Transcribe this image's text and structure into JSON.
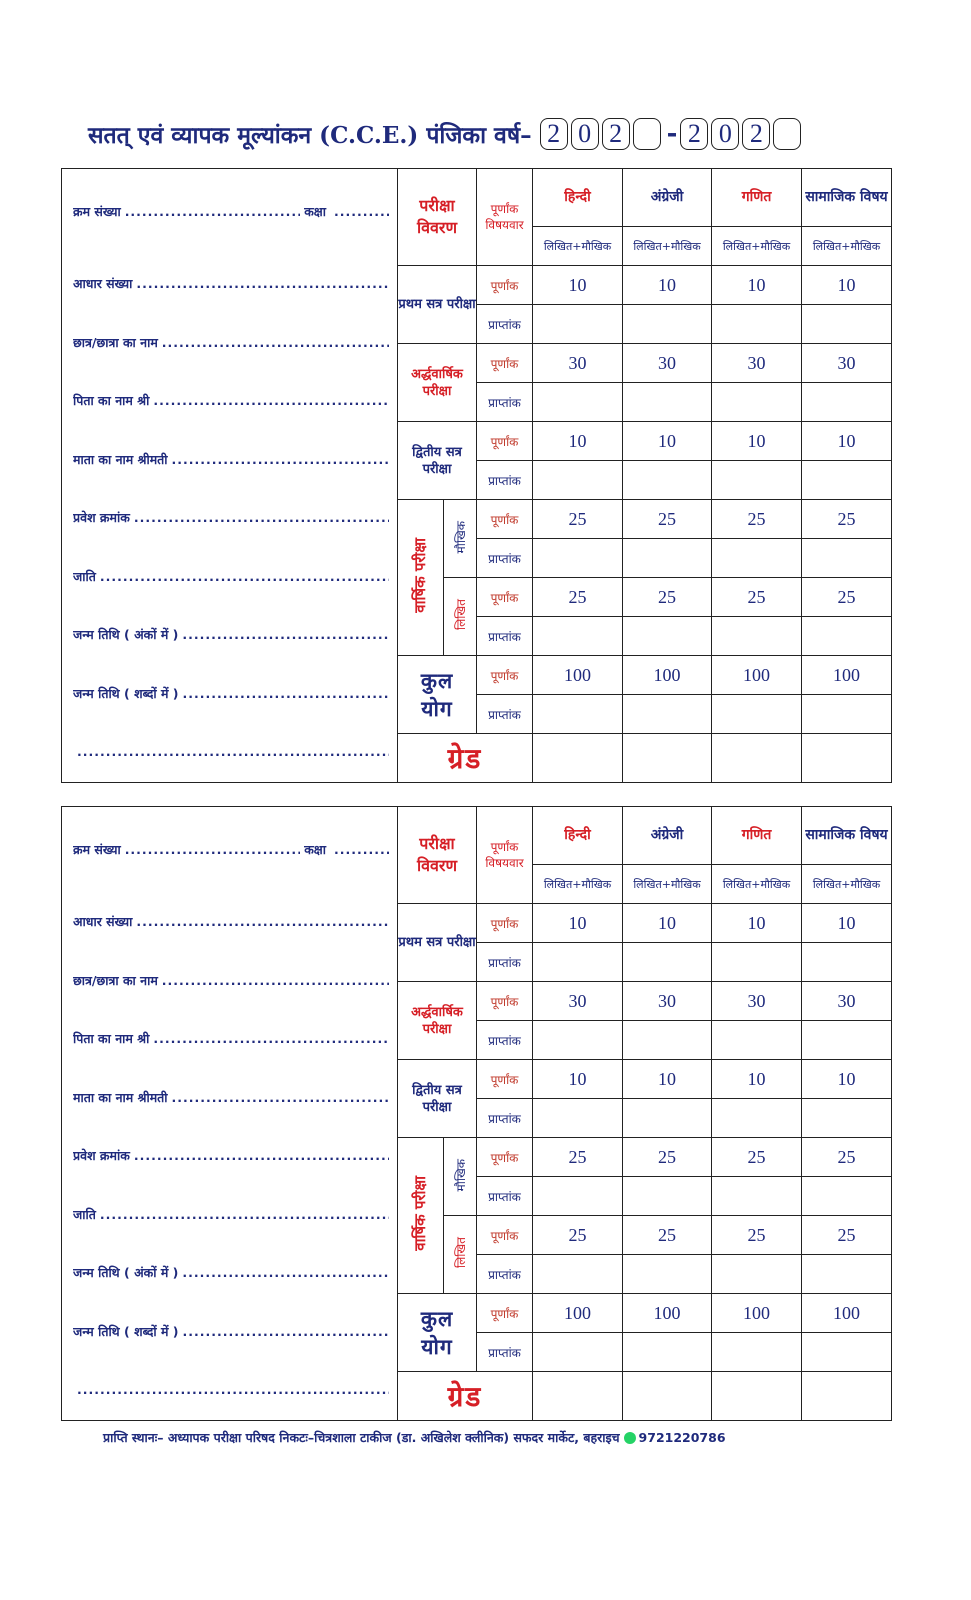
{
  "title": "सतत् एवं व्यापक मूल्यांकन (C.C.E.) पंजिका वर्ष–",
  "year_from": [
    "2",
    "0",
    "2",
    ""
  ],
  "year_to": [
    "2",
    "0",
    "2",
    ""
  ],
  "year_separator": "-",
  "form": {
    "fields": [
      {
        "label": "क्रम संख्या",
        "extra": "कक्षा"
      },
      {
        "label": "आधार संख्या"
      },
      {
        "label": "छात्र/छात्रा का नाम"
      },
      {
        "label": "पिता का नाम श्री"
      },
      {
        "label": "माता का नाम श्रीमती"
      },
      {
        "label": "प्रवेश क्रमांक"
      },
      {
        "label": "जाति"
      },
      {
        "label": "जन्म तिथि ( अंकों में )"
      },
      {
        "label": "जन्म तिथि ( शब्दों में )"
      },
      {
        "label": ""
      }
    ],
    "header": {
      "exam_details": [
        "परीक्षा",
        "विवरण"
      ],
      "max_marks": [
        "पूर्णांक",
        "विषयवार"
      ],
      "subjects": [
        {
          "name": "हिन्दी",
          "color": "#d61f26",
          "type": "लिखित+मौखिक"
        },
        {
          "name": "अंग्रेजी",
          "color": "#1f2a7c",
          "type": "लिखित+मौखिक"
        },
        {
          "name": "गणित",
          "color": "#d61f26",
          "type": "लिखित+मौखिक"
        },
        {
          "name": "सामाजिक विषय",
          "color": "#1f2a7c",
          "type": "लिखित+मौखिक"
        }
      ]
    },
    "max_label": "पूर्णांक",
    "obtained_label": "प्राप्तांक",
    "sections": [
      {
        "label": "प्रथम सत्र परीक्षा",
        "color": "#1f2a7c",
        "max": [
          "10",
          "10",
          "10",
          "10"
        ]
      },
      {
        "label": "अर्द्धवार्षिक परीक्षा",
        "color": "#d61f26",
        "max": [
          "30",
          "30",
          "30",
          "30"
        ]
      },
      {
        "label": "द्वितीय सत्र परीक्षा",
        "color": "#1f2a7c",
        "max": [
          "10",
          "10",
          "10",
          "10"
        ]
      }
    ],
    "annual": {
      "label": "वार्षिक परीक्षा",
      "parts": [
        {
          "label": "मौखिक",
          "color": "#1f2a7c",
          "max": [
            "25",
            "25",
            "25",
            "25"
          ]
        },
        {
          "label": "लिखित",
          "color": "#d61f26",
          "max": [
            "25",
            "25",
            "25",
            "25"
          ]
        }
      ]
    },
    "total": {
      "label": [
        "कुल",
        "योग"
      ],
      "max": [
        "100",
        "100",
        "100",
        "100"
      ]
    },
    "grade_label": "ग्रेड"
  },
  "footer": {
    "text": "प्राप्ति स्थानः– अध्यापक परीक्षा परिषद निकटः–चित्रशाला टाकीज (डा. अखिलेश क्लीनिक) सफदर मार्केट, बहराइच",
    "phone": "9721220786",
    "icon": "whatsapp-icon"
  }
}
